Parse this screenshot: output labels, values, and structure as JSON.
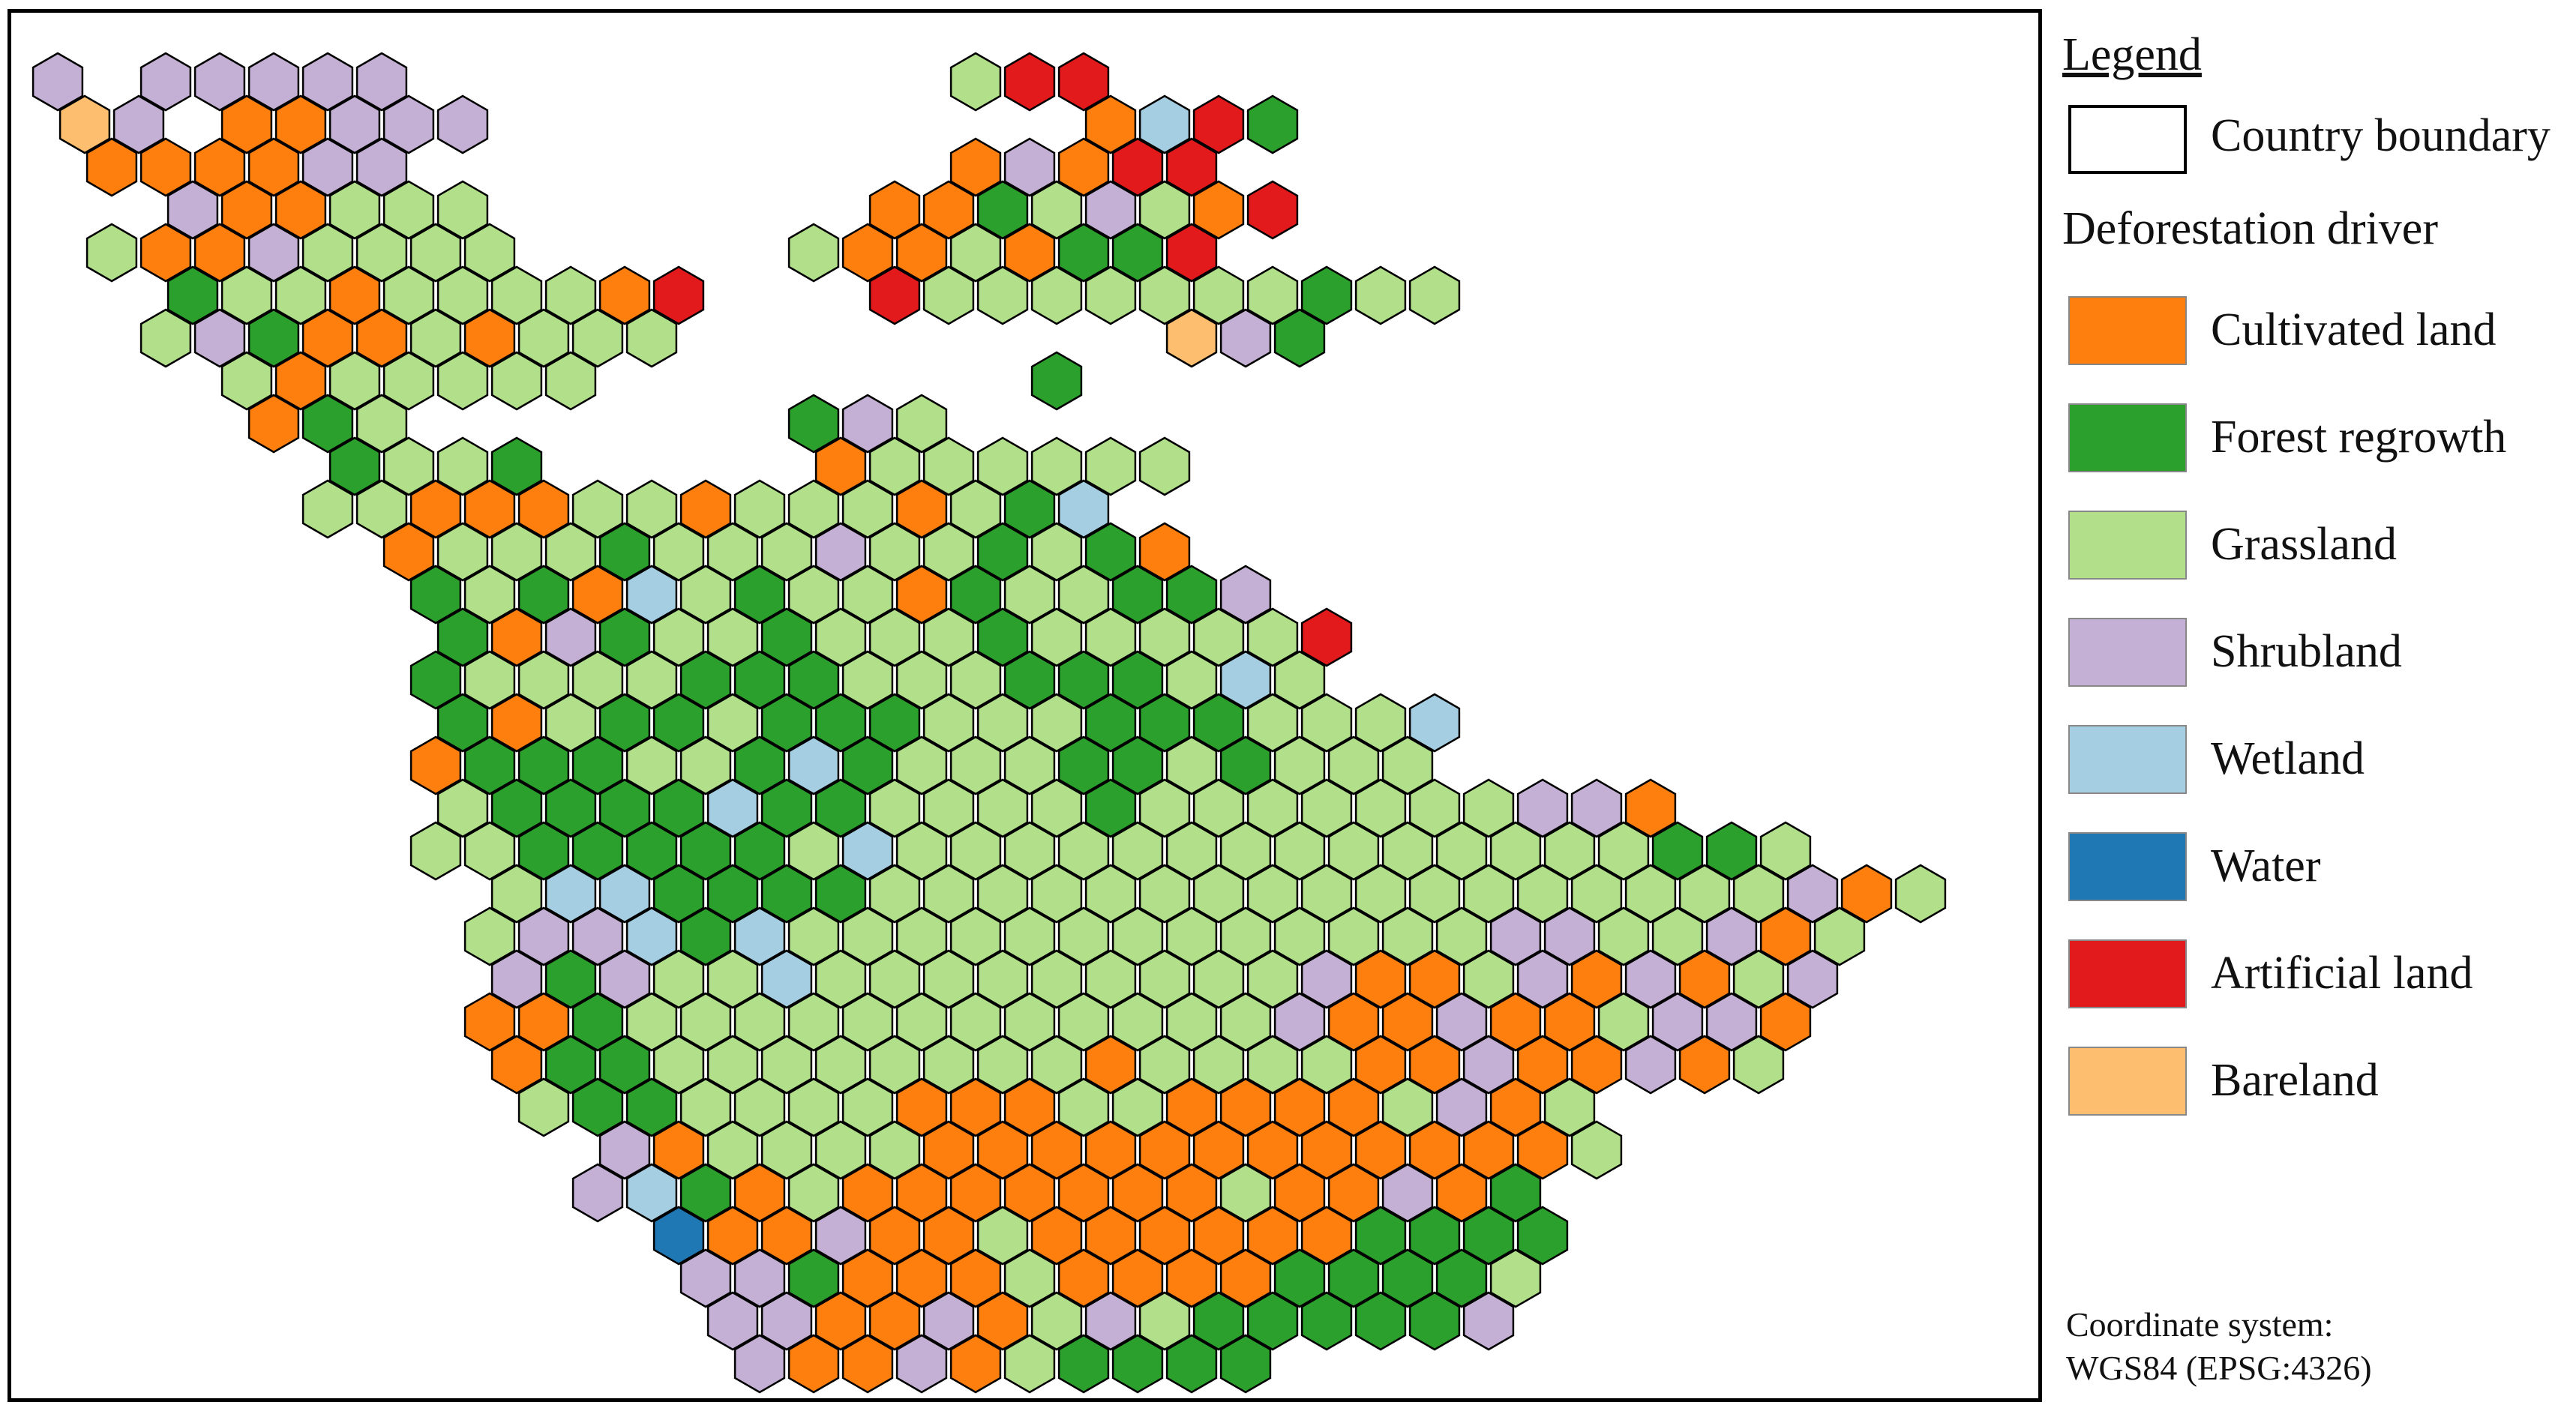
{
  "legend": {
    "title": "Legend",
    "boundary_label": "Country boundary",
    "driver_heading": "Deforestation driver",
    "drivers": [
      {
        "label": "Cultivated land",
        "color": "#ff7f0e",
        "key": "C"
      },
      {
        "label": "Forest regrowth",
        "color": "#2ca02c",
        "key": "F"
      },
      {
        "label": "Grassland",
        "color": "#b2df8a",
        "key": "G"
      },
      {
        "label": "Shrubland",
        "color": "#c5b0d5",
        "key": "S"
      },
      {
        "label": "Wetland",
        "color": "#a6cee3",
        "key": "W"
      },
      {
        "label": "Water",
        "color": "#1f78b4",
        "key": "B"
      },
      {
        "label": "Artificial land",
        "color": "#e31a1c",
        "key": "A"
      },
      {
        "label": "Bareland",
        "color": "#fdbf6f",
        "key": "R"
      }
    ]
  },
  "coordinate_system": {
    "line1": "Coordinate system:",
    "line2": "WGS84 (EPSG:4326)"
  },
  "map": {
    "rows": [
      {
        "row": 0,
        "start": 0,
        "cells": "S.SSSSS..........GAA"
      },
      {
        "row": 1,
        "start": 0,
        "cells": "RS.CCSSS...........CWAF"
      },
      {
        "row": 2,
        "start": 1,
        "cells": "CCCCSS..........CSCAA"
      },
      {
        "row": 3,
        "start": 1,
        "cells": ".SCCGGG.......CCFGSGCA"
      },
      {
        "row": 4,
        "start": 1,
        "cells": "GCCSGGGG.....GCCGCFFA"
      },
      {
        "row": 5,
        "start": 2,
        "cells": "FGGCGGGGCA...AGGGGGGGFGG"
      },
      {
        "row": 6,
        "start": 2,
        "cells": "GSFCCGCGGG.........RSF"
      },
      {
        "row": 7,
        "start": 3,
        "cells": "GCGGGGG........F"
      },
      {
        "row": 8,
        "start": 4,
        "cells": "CFG.......FSG"
      },
      {
        "row": 9,
        "start": 5,
        "cells": "FGGF.....CGGGGGG"
      },
      {
        "row": 10,
        "start": 5,
        "cells": "GGCCCGGCGGGCGFW"
      },
      {
        "row": 11,
        "start": 6,
        "cells": "CGGGFGGGSGGFGFC"
      },
      {
        "row": 12,
        "start": 7,
        "cells": "FGFCWGFGGCFGGFFS"
      },
      {
        "row": 13,
        "start": 7,
        "cells": "FCSFGGFGGGFGGGGGA"
      },
      {
        "row": 14,
        "start": 7,
        "cells": "FGGGGFFFGGGFFFGWG"
      },
      {
        "row": 15,
        "start": 7,
        "cells": "FCGFFGFFFGGGFFFGGGW"
      },
      {
        "row": 16,
        "start": 7,
        "cells": "CFFFGGFWFGGGFFGFGGG"
      },
      {
        "row": 17,
        "start": 7,
        "cells": "GFFFFWFFGGGGFGGGGGGGSSC"
      },
      {
        "row": 18,
        "start": 7,
        "cells": "GGFFFFFGWGGGGGGGGGGGGGGFFG"
      },
      {
        "row": 19,
        "start": 7,
        "cells": ".GWWFFFFGGGGGGGGGGGGGGGGGSCG"
      },
      {
        "row": 20,
        "start": 8,
        "cells": "GSSWFWGGGGGGGGGGGGGSSGGSCG"
      },
      {
        "row": 21,
        "start": 8,
        "cells": "SFSGGWGGGGGGGGGSCCGSCSCGS"
      },
      {
        "row": 22,
        "start": 8,
        "cells": "CCFGGGGGGGGGGGGSCCSCCGSSC"
      },
      {
        "row": 23,
        "start": 8,
        "cells": "CFFGGGGGGGGCGGGGCCSCCSCG"
      },
      {
        "row": 24,
        "start": 9,
        "cells": "GFFGGGGCCCGGCCCCGSCG"
      },
      {
        "row": 25,
        "start": 10,
        "cells": "SCGGGGCCCCCCCCCCCCG"
      },
      {
        "row": 26,
        "start": 10,
        "cells": "SWFCGCCCCCCCGCCSCF"
      },
      {
        "row": 27,
        "start": 11,
        "cells": "BCCSCCGCCCCCCFFFF"
      },
      {
        "row": 28,
        "start": 12,
        "cells": "SSFCCCGCCCCFFFFG"
      },
      {
        "row": 29,
        "start": 12,
        "cells": "SSCCSCGSGFFFFFS"
      },
      {
        "row": 30,
        "start": 13,
        "cells": "SCCSCGFFFF"
      }
    ]
  }
}
